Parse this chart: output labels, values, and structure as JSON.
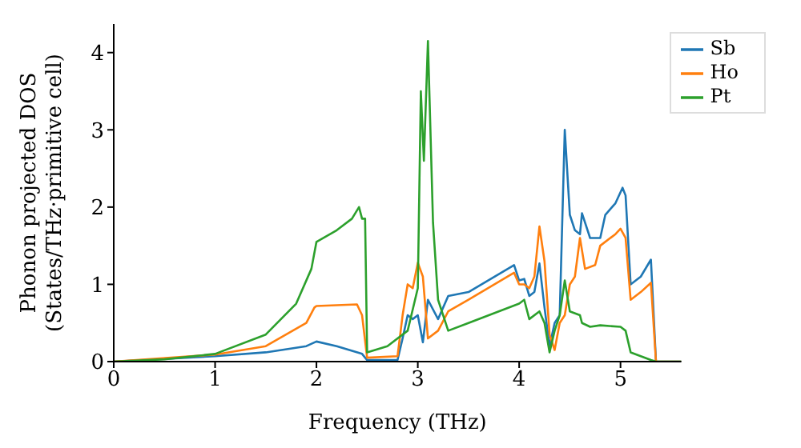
{
  "chart_data": {
    "type": "line",
    "xlabel": "Frequency (THz)",
    "ylabel": "Phonon projected DOS\n(States/THz·primitive cell)",
    "xlim": [
      0,
      5.6
    ],
    "ylim": [
      0,
      4.37
    ],
    "xticks": [
      0,
      1,
      2,
      3,
      4,
      5
    ],
    "yticks": [
      0,
      1,
      2,
      3,
      4
    ],
    "grid": false,
    "legend": "top right",
    "marker": "none",
    "line_style": "solid",
    "series": [
      {
        "name": "Sb",
        "color": "#1f77b4",
        "x": [
          0,
          1,
          1.5,
          1.9,
          2.0,
          2.2,
          2.45,
          2.5,
          2.8,
          2.85,
          2.9,
          2.95,
          3.0,
          3.05,
          3.1,
          3.2,
          3.3,
          3.5,
          3.95,
          4.0,
          4.05,
          4.1,
          4.15,
          4.2,
          4.25,
          4.3,
          4.35,
          4.4,
          4.45,
          4.5,
          4.55,
          4.6,
          4.62,
          4.7,
          4.8,
          4.85,
          4.95,
          5.02,
          5.05,
          5.1,
          5.2,
          5.3,
          5.35,
          5.6
        ],
        "values": [
          0,
          0.07,
          0.12,
          0.2,
          0.26,
          0.2,
          0.1,
          0.02,
          0.02,
          0.3,
          0.6,
          0.55,
          0.6,
          0.25,
          0.8,
          0.55,
          0.85,
          0.9,
          1.25,
          1.05,
          1.07,
          0.85,
          0.9,
          1.27,
          0.7,
          0.2,
          0.5,
          0.6,
          3.0,
          1.9,
          1.7,
          1.65,
          1.92,
          1.6,
          1.6,
          1.9,
          2.05,
          2.25,
          2.15,
          1.0,
          1.1,
          1.32,
          0,
          0
        ]
      },
      {
        "name": "Ho",
        "color": "#ff7f0e",
        "x": [
          0,
          1,
          1.5,
          1.9,
          1.98,
          2.0,
          2.4,
          2.45,
          2.5,
          2.8,
          2.85,
          2.9,
          2.95,
          3.0,
          3.05,
          3.1,
          3.2,
          3.3,
          3.5,
          3.95,
          4.0,
          4.05,
          4.1,
          4.15,
          4.2,
          4.25,
          4.3,
          4.35,
          4.4,
          4.45,
          4.5,
          4.55,
          4.6,
          4.65,
          4.75,
          4.8,
          4.95,
          5.0,
          5.05,
          5.1,
          5.2,
          5.3,
          5.35,
          5.6
        ],
        "values": [
          0,
          0.09,
          0.2,
          0.5,
          0.7,
          0.72,
          0.74,
          0.6,
          0.05,
          0.07,
          0.6,
          1.0,
          0.95,
          1.28,
          1.1,
          0.3,
          0.4,
          0.65,
          0.8,
          1.15,
          1.0,
          1.0,
          0.95,
          1.1,
          1.75,
          1.3,
          0.35,
          0.15,
          0.5,
          0.6,
          1.0,
          1.1,
          1.6,
          1.2,
          1.25,
          1.5,
          1.65,
          1.72,
          1.6,
          0.8,
          0.9,
          1.02,
          0,
          0
        ]
      },
      {
        "name": "Pt",
        "color": "#2ca02c",
        "x": [
          0,
          0.5,
          1,
          1.5,
          1.8,
          1.95,
          2.0,
          2.2,
          2.35,
          2.42,
          2.45,
          2.48,
          2.5,
          2.7,
          2.9,
          3.0,
          3.03,
          3.06,
          3.1,
          3.15,
          3.2,
          3.3,
          3.5,
          4.0,
          4.05,
          4.1,
          4.2,
          4.25,
          4.3,
          4.35,
          4.4,
          4.45,
          4.5,
          4.6,
          4.62,
          4.7,
          4.8,
          5.0,
          5.05,
          5.1,
          5.3,
          5.35,
          5.6
        ],
        "values": [
          0,
          0.03,
          0.1,
          0.35,
          0.75,
          1.2,
          1.55,
          1.7,
          1.85,
          2.0,
          1.85,
          1.85,
          0.12,
          0.2,
          0.4,
          0.95,
          3.5,
          2.6,
          4.15,
          1.8,
          0.8,
          0.4,
          0.5,
          0.75,
          0.8,
          0.55,
          0.65,
          0.5,
          0.12,
          0.4,
          0.6,
          1.05,
          0.65,
          0.6,
          0.5,
          0.45,
          0.47,
          0.45,
          0.4,
          0.12,
          0.02,
          0,
          0
        ]
      }
    ]
  }
}
